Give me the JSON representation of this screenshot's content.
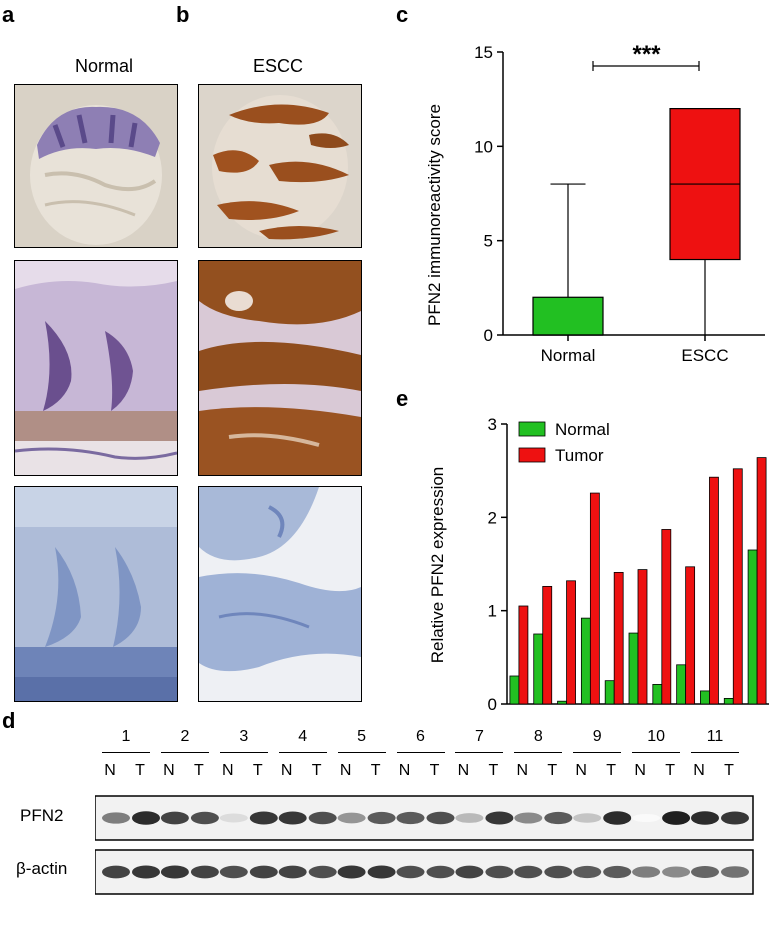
{
  "panels": {
    "a": "a",
    "b": "b",
    "c": "c",
    "d": "d",
    "e": "e"
  },
  "columns": {
    "normal": "Normal",
    "escc": "ESCC"
  },
  "chart_data": [
    {
      "type": "box",
      "panel": "c",
      "ylabel": "PFN2 immunoreactivity score",
      "ylim": [
        0,
        15
      ],
      "yticks": [
        0,
        5,
        10,
        15
      ],
      "categories": [
        "Normal",
        "ESCC"
      ],
      "boxes": [
        {
          "name": "Normal",
          "min": 0,
          "q1": 0,
          "median": 0,
          "q3": 2,
          "max": 8,
          "color": "#22c022"
        },
        {
          "name": "ESCC",
          "min": 0,
          "q1": 4,
          "median": 8,
          "q3": 12,
          "max": 12,
          "color": "#ee1111"
        }
      ],
      "significance": "***"
    },
    {
      "type": "bar",
      "panel": "e",
      "ylabel": "Relative PFN2 expression",
      "ylim": [
        0,
        3
      ],
      "yticks": [
        0,
        1,
        2,
        3
      ],
      "categories": [
        "1",
        "2",
        "3",
        "4",
        "5",
        "6",
        "7",
        "8",
        "9",
        "10",
        "11"
      ],
      "series": [
        {
          "name": "Normal",
          "color": "#22c022",
          "values": [
            0.3,
            0.75,
            0.03,
            0.92,
            0.25,
            0.76,
            0.21,
            0.42,
            0.14,
            0.06,
            1.65
          ]
        },
        {
          "name": "Tumor",
          "color": "#ee1111",
          "values": [
            1.05,
            1.26,
            1.32,
            2.26,
            1.41,
            1.44,
            1.87,
            1.47,
            2.43,
            2.52,
            2.64
          ]
        }
      ],
      "legend": "top-left"
    }
  ],
  "blot": {
    "lanes": [
      "1",
      "2",
      "3",
      "4",
      "5",
      "6",
      "7",
      "8",
      "9",
      "10",
      "11"
    ],
    "n_label": "N",
    "t_label": "T",
    "rows": [
      {
        "name": "PFN2",
        "intensity": [
          0.55,
          0.9,
          0.8,
          0.75,
          0.15,
          0.85,
          0.85,
          0.75,
          0.45,
          0.7,
          0.7,
          0.75,
          0.3,
          0.85,
          0.5,
          0.7,
          0.25,
          0.9,
          0.02,
          0.95,
          0.9,
          0.85
        ]
      },
      {
        "name": "β-actin",
        "intensity": [
          0.8,
          0.85,
          0.85,
          0.8,
          0.75,
          0.8,
          0.8,
          0.75,
          0.85,
          0.85,
          0.75,
          0.75,
          0.8,
          0.75,
          0.75,
          0.75,
          0.7,
          0.7,
          0.55,
          0.5,
          0.65,
          0.6
        ]
      }
    ]
  }
}
